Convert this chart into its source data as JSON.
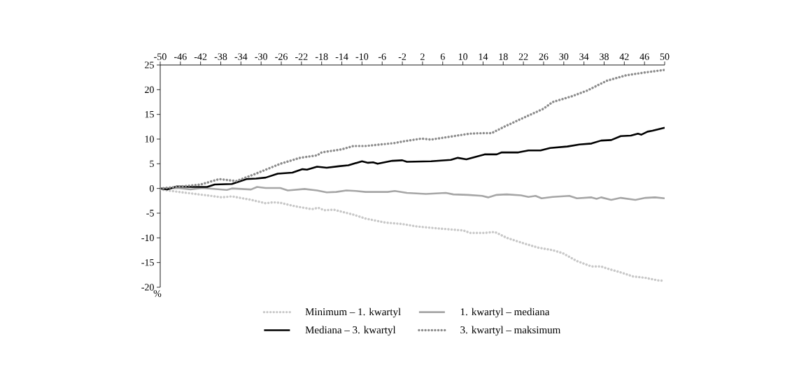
{
  "chart_data": {
    "type": "line",
    "ylabel": "%",
    "xlim": [
      -50,
      50
    ],
    "xticks": [
      -50,
      -46,
      -42,
      -38,
      -34,
      -30,
      -26,
      -22,
      -18,
      -14,
      -10,
      -6,
      -2,
      2,
      6,
      10,
      14,
      18,
      22,
      26,
      30,
      34,
      38,
      42,
      46,
      50
    ],
    "ylim": [
      -20,
      25
    ],
    "yticks": [
      -20,
      -15,
      -10,
      -5,
      0,
      5,
      10,
      15,
      20,
      25
    ],
    "grid": false,
    "legend": "bottom",
    "series": [
      {
        "name": "Minimum – 1. kwartyl",
        "color": "#c8c8c8",
        "line_style": "dotted",
        "x": [
          -50,
          -47.1,
          -44.7,
          -40.7,
          -37.8,
          -35.8,
          -32,
          -29.1,
          -27.6,
          -26.2,
          -23.3,
          -19.9,
          -18.7,
          -17.5,
          -15.6,
          -11.7,
          -9.3,
          -5.4,
          -2,
          0.9,
          5.2,
          10.1,
          11.4,
          14.3,
          16.3,
          18.7,
          22,
          25,
          27.8,
          29.8,
          32.6,
          35.5,
          37.4,
          38.9,
          41.3,
          43.7,
          46.2,
          48.6,
          50
        ],
        "values": [
          -0.2,
          -0.6,
          -0.9,
          -1.4,
          -1.8,
          -1.6,
          -2.3,
          -3.0,
          -2.8,
          -2.9,
          -3.6,
          -4.2,
          -3.9,
          -4.4,
          -4.3,
          -5.3,
          -6.1,
          -6.9,
          -7.2,
          -7.7,
          -8.1,
          -8.5,
          -9.0,
          -9.0,
          -8.8,
          -10.0,
          -11.1,
          -12.0,
          -12.5,
          -13.1,
          -14.7,
          -15.8,
          -15.8,
          -16.3,
          -17.0,
          -17.8,
          -18.1,
          -18.6,
          -18.7
        ]
      },
      {
        "name": "1. kwartyl – mediana",
        "color": "#a6a6a6",
        "line_style": "solid",
        "x": [
          -50,
          -46.5,
          -44,
          -41.6,
          -36.8,
          -35.8,
          -32,
          -30.8,
          -29.1,
          -26.2,
          -24.7,
          -21.4,
          -18.9,
          -17,
          -15.1,
          -13.1,
          -11.2,
          -9.3,
          -7.3,
          -4.9,
          -3.5,
          -1.1,
          2.7,
          6.6,
          8.1,
          11,
          13.8,
          15,
          16.7,
          18.7,
          21.5,
          23,
          24.4,
          25.6,
          27.8,
          31.1,
          32.6,
          35.5,
          36.5,
          37.4,
          39.4,
          41.3,
          44.2,
          46.2,
          48.1,
          50
        ],
        "values": [
          0,
          0.1,
          -0.2,
          0.1,
          -0.3,
          0,
          -0.2,
          0.3,
          0.1,
          0.1,
          -0.4,
          -0.1,
          -0.4,
          -0.8,
          -0.7,
          -0.4,
          -0.5,
          -0.7,
          -0.7,
          -0.7,
          -0.5,
          -0.9,
          -1.1,
          -0.9,
          -1.2,
          -1.3,
          -1.5,
          -1.8,
          -1.3,
          -1.2,
          -1.4,
          -1.7,
          -1.5,
          -2.0,
          -1.7,
          -1.5,
          -2.0,
          -1.8,
          -2.1,
          -1.8,
          -2.3,
          -1.9,
          -2.3,
          -1.9,
          -1.8,
          -2.0
        ]
      },
      {
        "name": "Mediana – 3. kwartyl",
        "color": "#000000",
        "line_style": "solid",
        "x": [
          -50,
          -48.6,
          -46.7,
          -43.6,
          -40.7,
          -39.2,
          -35.8,
          -32.9,
          -31,
          -29.1,
          -26.7,
          -23.8,
          -21.8,
          -20.9,
          -18.9,
          -17,
          -14.6,
          -12.7,
          -10,
          -8.8,
          -7.8,
          -6.9,
          -4,
          -2,
          -1.1,
          3.7,
          7.6,
          9,
          10.7,
          14.3,
          16.7,
          17.7,
          21,
          23,
          25.4,
          27.3,
          30.7,
          33.1,
          35.5,
          37.4,
          39.4,
          41.3,
          43.3,
          44.7,
          45.4,
          46.6,
          47.6,
          50
        ],
        "values": [
          0,
          -0.2,
          0.4,
          0.3,
          0.3,
          0.8,
          0.9,
          1.9,
          2.0,
          2.2,
          3.0,
          3.2,
          3.9,
          3.8,
          4.4,
          4.2,
          4.5,
          4.7,
          5.5,
          5.2,
          5.3,
          5.0,
          5.6,
          5.7,
          5.4,
          5.5,
          5.8,
          6.2,
          5.9,
          6.9,
          6.9,
          7.3,
          7.3,
          7.7,
          7.7,
          8.2,
          8.5,
          8.9,
          9.1,
          9.7,
          9.8,
          10.6,
          10.7,
          11.1,
          10.9,
          11.5,
          11.7,
          12.3
        ]
      },
      {
        "name": "3. kwartyl – maksimum",
        "color": "#8c8c8c",
        "line_style": "dotted",
        "x": [
          -50,
          -46,
          -42,
          -38.3,
          -34.9,
          -31,
          -26.2,
          -22.3,
          -18.9,
          -18,
          -14.1,
          -11.7,
          -9.3,
          -6.4,
          -3.5,
          -2,
          1.8,
          3.7,
          7.6,
          11.4,
          13.8,
          15.7,
          18.2,
          22,
          25.9,
          27.8,
          31.7,
          34.6,
          38.5,
          42.3,
          46.2,
          50
        ],
        "values": [
          0,
          0.4,
          0.8,
          1.9,
          1.5,
          3.0,
          5.0,
          6.2,
          6.7,
          7.3,
          7.9,
          8.6,
          8.6,
          8.9,
          9.2,
          9.5,
          10.1,
          9.9,
          10.5,
          11.1,
          11.2,
          11.2,
          12.5,
          14.3,
          16.1,
          17.5,
          18.7,
          19.8,
          21.8,
          22.9,
          23.5,
          24.0
        ]
      }
    ]
  }
}
